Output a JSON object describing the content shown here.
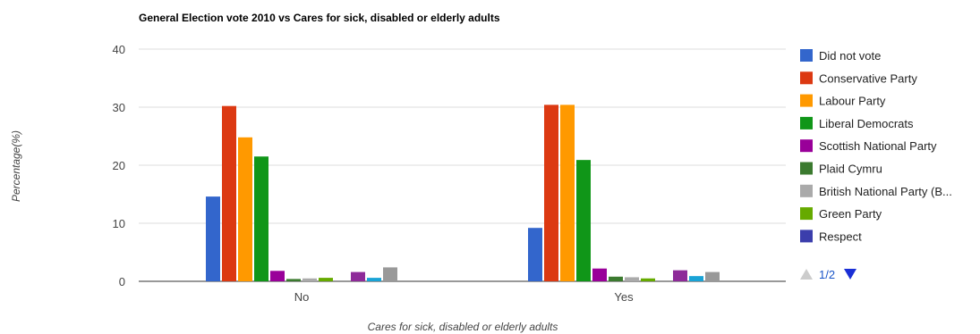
{
  "chart_data": {
    "type": "bar",
    "title": "General Election vote 2010 vs Cares for sick, disabled or elderly adults",
    "xlabel": "Cares for sick, disabled or elderly adults",
    "ylabel": "Percentage(%)",
    "ylim": [
      0,
      40
    ],
    "yticks": [
      "0",
      "10",
      "20",
      "30",
      "40"
    ],
    "grid": true,
    "legend_position": "right",
    "categories": [
      "No",
      "Yes"
    ],
    "series": [
      {
        "name": "Did not vote",
        "color": "#3366cc",
        "values": [
          14.6,
          9.2
        ]
      },
      {
        "name": "Conservative Party",
        "color": "#dc3912",
        "values": [
          30.2,
          30.4
        ]
      },
      {
        "name": "Labour Party",
        "color": "#ff9900",
        "values": [
          24.8,
          30.4
        ]
      },
      {
        "name": "Liberal Democrats",
        "color": "#109618",
        "values": [
          21.5,
          20.9
        ]
      },
      {
        "name": "Scottish National Party",
        "color": "#990099",
        "values": [
          1.8,
          2.2
        ]
      },
      {
        "name": "Plaid Cymru",
        "color": "#3b7a2f",
        "values": [
          0.4,
          0.8
        ]
      },
      {
        "name": "British National Party (B...",
        "color": "#aaaaaa",
        "values": [
          0.5,
          0.7
        ]
      },
      {
        "name": "Green Party",
        "color": "#66aa00",
        "values": [
          0.6,
          0.5
        ]
      },
      {
        "name": "Respect",
        "color": "#3b3eac",
        "values": [
          0.0,
          0.0
        ]
      },
      {
        "name": "",
        "color": "#8e2a99",
        "values": [
          1.6,
          1.9
        ]
      },
      {
        "name": "",
        "color": "#1aa3d6",
        "values": [
          0.6,
          0.9
        ]
      },
      {
        "name": "",
        "color": "#999999",
        "values": [
          2.4,
          1.6
        ]
      }
    ],
    "legend_visible_count": 9
  },
  "pager": {
    "label": "1/2",
    "prev_icon": "triangle-up-icon",
    "next_icon": "triangle-down-icon",
    "prev_color": "#cccccc",
    "next_color": "#1a2fd6"
  }
}
